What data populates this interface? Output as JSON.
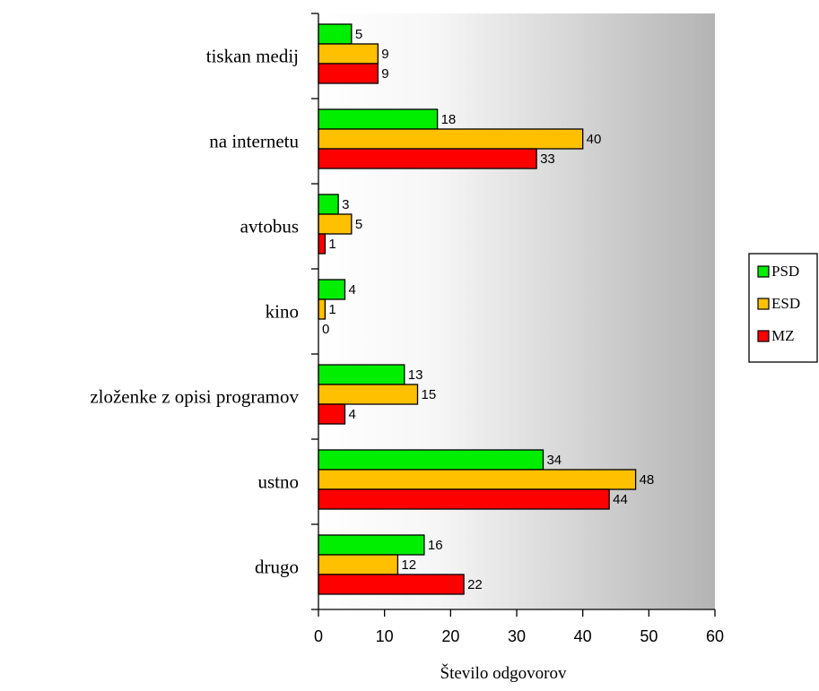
{
  "chart_data": {
    "type": "bar",
    "orientation": "horizontal",
    "categories": [
      "tiskan medij",
      "na internetu",
      "avtobus",
      "kino",
      "zloženke z opisi programov",
      "ustno",
      "drugo"
    ],
    "series": [
      {
        "name": "PSD",
        "color": "#00ee00",
        "values": [
          5,
          18,
          3,
          4,
          13,
          34,
          16
        ]
      },
      {
        "name": "ESD",
        "color": "#ffc000",
        "values": [
          9,
          40,
          5,
          1,
          15,
          48,
          12
        ]
      },
      {
        "name": "MZ",
        "color": "#ff0000",
        "values": [
          9,
          33,
          1,
          0,
          4,
          44,
          22
        ]
      }
    ],
    "xlabel": "Število odgovorov",
    "ylabel": "",
    "xlim": [
      0,
      60
    ],
    "xticks": [
      0,
      10,
      20,
      30,
      40,
      50,
      60
    ],
    "grid": false,
    "legend_position": "right",
    "plot_background": "gradient white to gray"
  }
}
